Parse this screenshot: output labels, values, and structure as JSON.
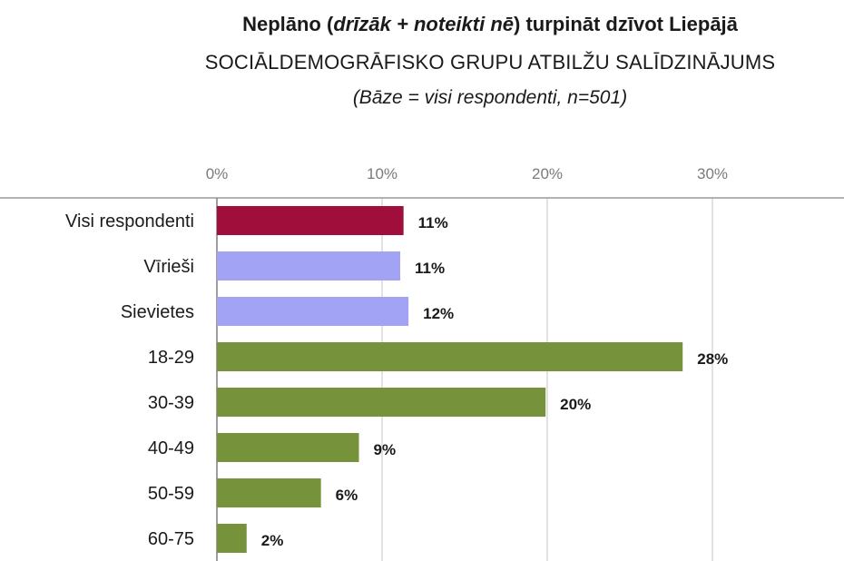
{
  "title": {
    "part1": "Neplāno (",
    "italic1": "drīzāk",
    "plus": " + ",
    "italic2": "noteikti nē",
    "part2": ") turpināt dzīvot Liepājā"
  },
  "subtitle": "SOCIĀLDEMOGRĀFISKO GRUPU ATBILŽU SALĪDZINĀJUMS",
  "basis": "(Bāze = visi respondenti, n=501)",
  "chart_data": {
    "type": "bar",
    "orientation": "horizontal",
    "categories": [
      "Visi respondenti",
      "Vīrieši",
      "Sievietes",
      "18-29",
      "30-39",
      "40-49",
      "50-59",
      "60-75"
    ],
    "values": [
      11.3,
      11.1,
      11.6,
      28.2,
      19.9,
      8.6,
      6.3,
      1.8
    ],
    "value_labels": [
      "11%",
      "11%",
      "12%",
      "28%",
      "20%",
      "9%",
      "6%",
      "2%"
    ],
    "bar_colors": [
      "#a00f3c",
      "#a3a3f5",
      "#a3a3f5",
      "#76933c",
      "#76933c",
      "#76933c",
      "#76933c",
      "#76933c"
    ],
    "x_ticks": [
      0,
      10,
      20,
      30
    ],
    "x_tick_labels": [
      "0%",
      "10%",
      "20%",
      "30%"
    ],
    "xlim": [
      0,
      38
    ],
    "grid": true
  }
}
